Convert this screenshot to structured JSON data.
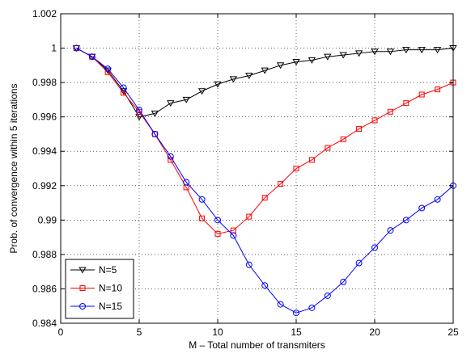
{
  "chart_data": {
    "type": "line",
    "title": "",
    "xlabel": "M – Total number of transmiters",
    "ylabel": "Prob. of convergence within 5 iterations",
    "xlim": [
      0,
      25
    ],
    "ylim": [
      0.984,
      1.002
    ],
    "xticks": [
      0,
      5,
      10,
      15,
      20,
      25
    ],
    "yticks": [
      0.984,
      0.986,
      0.988,
      0.99,
      0.992,
      0.994,
      0.996,
      0.998,
      1,
      1.002
    ],
    "xtick_labels": [
      "0",
      "5",
      "10",
      "15",
      "20",
      "25"
    ],
    "ytick_labels": [
      "0.984",
      "0.986",
      "0.988",
      "0.99",
      "0.992",
      "0.994",
      "0.996",
      "0.998",
      "1",
      "1.002"
    ],
    "grid": true,
    "legend_position": "bottom-left",
    "x": [
      1,
      2,
      3,
      4,
      5,
      6,
      7,
      8,
      9,
      10,
      11,
      12,
      13,
      14,
      15,
      16,
      17,
      18,
      19,
      20,
      21,
      22,
      23,
      24,
      25
    ],
    "series": [
      {
        "name": "N=5",
        "color": "#000000",
        "marker": "triangle-down",
        "values": [
          1.0,
          0.9995,
          0.9987,
          0.9975,
          0.996,
          0.9962,
          0.9968,
          0.997,
          0.9975,
          0.9979,
          0.9982,
          0.9984,
          0.9987,
          0.999,
          0.9992,
          0.9993,
          0.9995,
          0.9996,
          0.9997,
          0.9998,
          0.9998,
          0.9999,
          0.9999,
          0.9999,
          1.0
        ]
      },
      {
        "name": "N=10",
        "color": "#ff0000",
        "marker": "square",
        "values": [
          1.0,
          0.9995,
          0.9986,
          0.9974,
          0.9963,
          0.995,
          0.9935,
          0.9919,
          0.9901,
          0.9892,
          0.9894,
          0.9902,
          0.9913,
          0.9921,
          0.993,
          0.9935,
          0.9942,
          0.9947,
          0.9953,
          0.9958,
          0.9963,
          0.9968,
          0.9973,
          0.9976,
          0.998
        ]
      },
      {
        "name": "N=15",
        "color": "#0000ff",
        "marker": "circle",
        "values": [
          1.0,
          0.9995,
          0.9988,
          0.9977,
          0.9964,
          0.995,
          0.9937,
          0.9922,
          0.9912,
          0.99,
          0.9891,
          0.9874,
          0.9862,
          0.9851,
          0.9846,
          0.9849,
          0.9856,
          0.9864,
          0.9875,
          0.9884,
          0.9894,
          0.99,
          0.9907,
          0.9912,
          0.992
        ]
      }
    ]
  }
}
